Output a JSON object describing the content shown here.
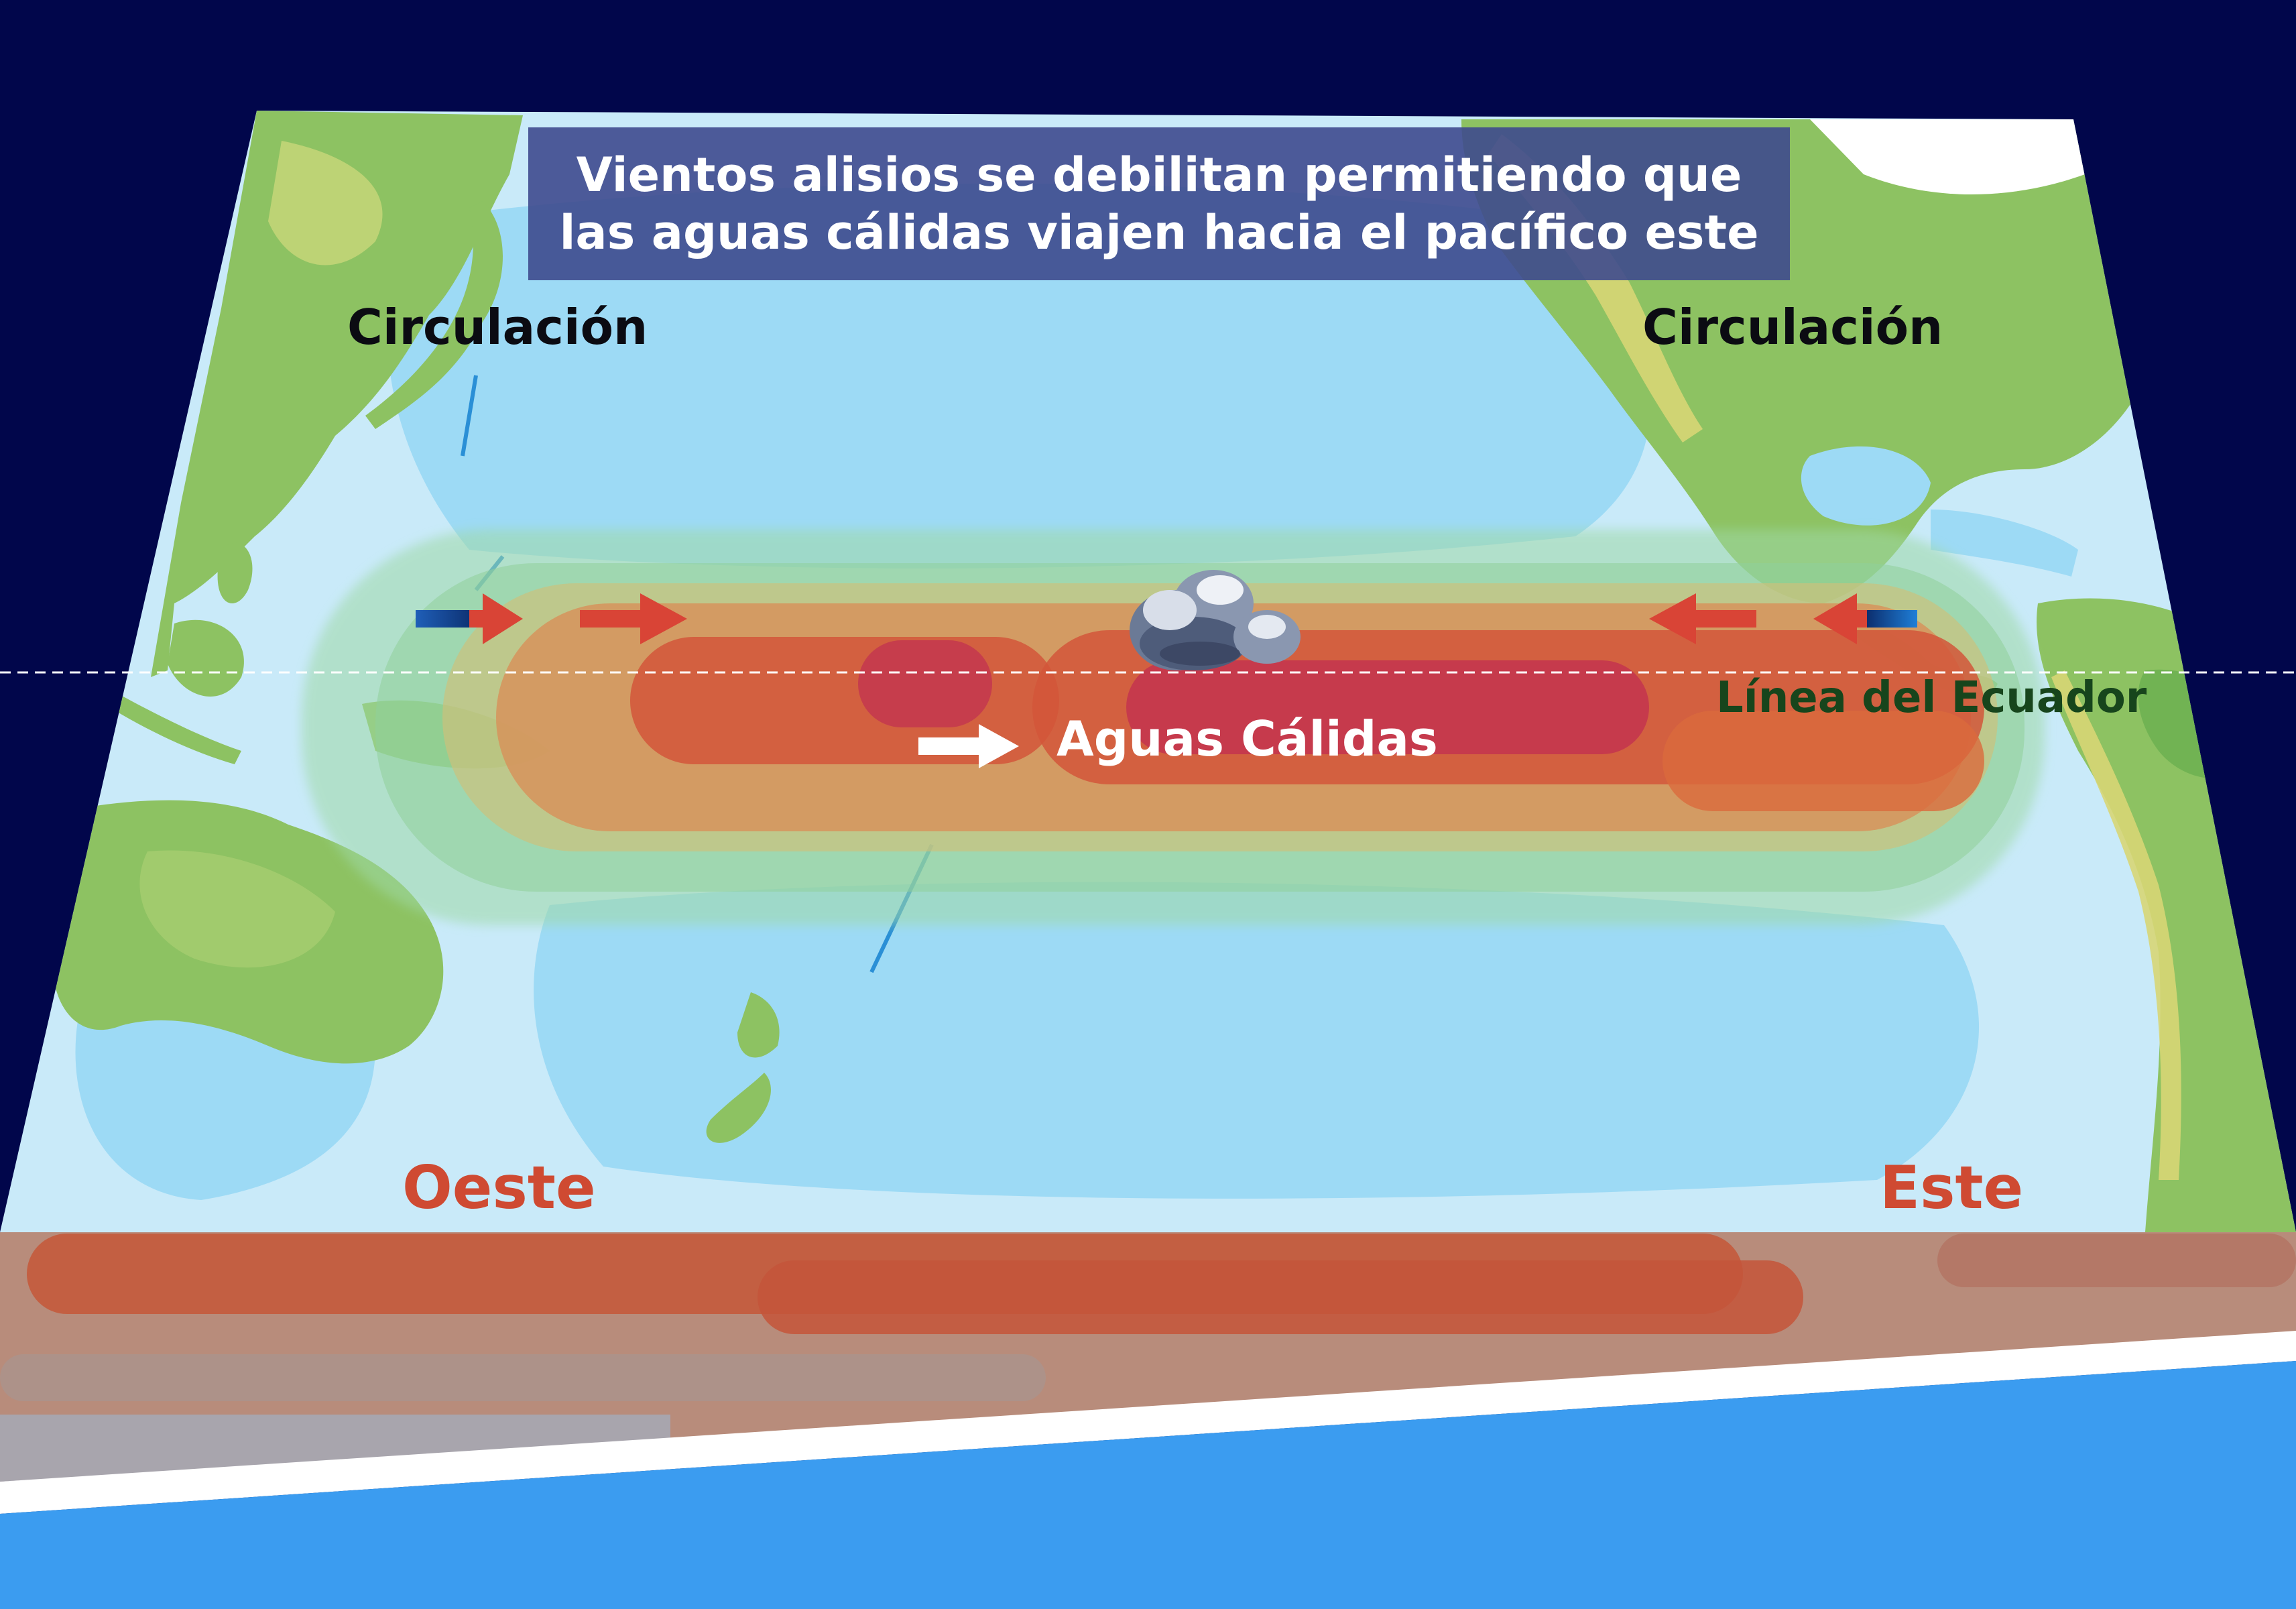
{
  "title": {
    "line1": "Vientos alisios se debilitan permitiendo que",
    "line2": "las aguas cálidas viajen hacia el pacífico este"
  },
  "labels": {
    "circulation_left": "Circulación",
    "circulation_right": "Circulación",
    "equator": "Línea del Ecuador",
    "warm_waters": "Aguas Cálidas",
    "west": "Oeste",
    "east": "Este"
  },
  "colors": {
    "background": "#01064b",
    "ocean_light": "#c9eaf9",
    "ocean_mid": "#9ddaf5",
    "land": "#8dc262",
    "warm_core": "#c3344f",
    "warm_band": "#d2563a",
    "trade_wind_arrow": "#d94436",
    "cold_arrow": "#1f5fb8",
    "label_red": "#cf4a32",
    "equator_green": "#17451c",
    "water_blue": "#3b9cf0"
  },
  "icons": [
    "storm-cloud-icon",
    "trade-wind-arrow-icon",
    "warm-current-arrow-icon"
  ]
}
